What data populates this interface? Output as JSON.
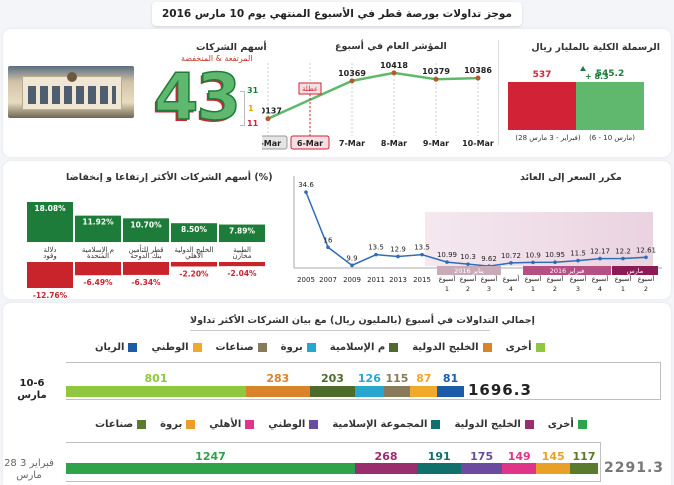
{
  "header": {
    "title": "موجز تداولات بورصة قطر في الأسبوع المنتهي يوم 10 مارس 2016"
  },
  "market_cap": {
    "title": "الرسملة الكلية بالمليار ريال",
    "current": {
      "value": 545.2,
      "label": "(6 - 10 مارس)",
      "color": "#5fb86d"
    },
    "previous": {
      "value": 537,
      "label": "(28 فبراير - 3 مارس)",
      "color": "#d12335"
    },
    "change": "+ 8.3"
  },
  "index": {
    "title": "المؤشر العام في أسبوع",
    "holiday": "عطلة",
    "days": [
      {
        "label": "3-Mar",
        "value": 10137,
        "highlight": "gray"
      },
      {
        "label": "6-Mar",
        "value": null,
        "highlight": "red"
      },
      {
        "label": "7-Mar",
        "value": 10369,
        "highlight": ""
      },
      {
        "label": "8-Mar",
        "value": 10418,
        "highlight": ""
      },
      {
        "label": "9-Mar",
        "value": 10379,
        "highlight": ""
      },
      {
        "label": "10-Mar",
        "value": 10386,
        "highlight": ""
      }
    ]
  },
  "stocks": {
    "title": "أسهم الشركات",
    "subtitle": "المرتفعة & المنخفضة",
    "total": "43",
    "up": "31",
    "flat": "1",
    "down": "11",
    "up_color": "#1d7c3a",
    "down_color": "#d12335"
  },
  "movers": {
    "title": "أسهم الشركات الأكثر إرتفاعا و إنخفاضا (%)",
    "gainers": [
      {
        "name": "الطبية",
        "value": "7.89%",
        "pct": 7.89
      },
      {
        "name": "الخليج الدولية",
        "value": "8.50%",
        "pct": 8.5
      },
      {
        "name": "قطر للتأمين",
        "value": "10.70%",
        "pct": 10.7
      },
      {
        "name": "م الإسلامية",
        "value": "11.92%",
        "pct": 11.92
      },
      {
        "name": "دلالة",
        "value": "18.08%",
        "pct": 18.08
      }
    ],
    "losers": [
      {
        "name": "مخازن",
        "value": "-2.04%",
        "pct": -2.04
      },
      {
        "name": "الأهلي",
        "value": "-2.20%",
        "pct": -2.2
      },
      {
        "name": "بنك الدوحة",
        "value": "-6.34%",
        "pct": -6.34
      },
      {
        "name": "المتحدة",
        "value": "-6.49%",
        "pct": -6.49
      },
      {
        "name": "وقود",
        "value": "-12.76%",
        "pct": -12.76
      }
    ]
  },
  "pe": {
    "title": "مكرر السعر إلى العائد",
    "points": [
      {
        "x": "2005",
        "y": 34.6
      },
      {
        "x": "2007",
        "y": 16
      },
      {
        "x": "2009",
        "y": 9.9
      },
      {
        "x": "2011",
        "y": 13.5
      },
      {
        "x": "2013",
        "y": 12.9
      },
      {
        "x": "2015",
        "y": 13.5
      },
      {
        "x": "أسبوع 1",
        "y": 10.99
      },
      {
        "x": "أسبوع 2",
        "y": 10.3
      },
      {
        "x": "أسبوع 3",
        "y": 9.62
      },
      {
        "x": "أسبوع 4",
        "y": 10.72
      },
      {
        "x": "أسبوع 1",
        "y": 10.9
      },
      {
        "x": "أسبوع 2",
        "y": 10.95
      },
      {
        "x": "أسبوع 3",
        "y": 11.5
      },
      {
        "x": "أسبوع 4",
        "y": 12.17
      },
      {
        "x": "أسبوع 1",
        "y": 12.2
      },
      {
        "x": "أسبوع 2",
        "y": 12.61
      }
    ],
    "months": [
      {
        "name": "يناير 2016",
        "color": "#c8aab8"
      },
      {
        "name": "فبراير 2016",
        "color": "#b64f86"
      },
      {
        "name": "مارس",
        "color": "#8c1a56"
      }
    ]
  },
  "volumes": {
    "title": "إجمالي التداولات في أسبوع (بالمليون ريال) مع بيان الشركات الأكثر تداولا",
    "week1": {
      "label": "10-6 مارس",
      "total": "1696.3",
      "segments": [
        {
          "name": "أخرى",
          "value": 801,
          "color": "#8fc73e"
        },
        {
          "name": "الخليج الدولية",
          "value": 283,
          "color": "#d9842b"
        },
        {
          "name": "م الإسلامية",
          "value": 203,
          "color": "#4d6b2a"
        },
        {
          "name": "بروة",
          "value": 126,
          "color": "#27a7cf"
        },
        {
          "name": "صناعات",
          "value": 115,
          "color": "#8a7a5c"
        },
        {
          "name": "الوطني",
          "value": 87,
          "color": "#f0a92a"
        },
        {
          "name": "الريان",
          "value": 81,
          "color": "#1a5ca8"
        }
      ]
    },
    "week2": {
      "label": "28 فبراير 3 مارس",
      "total": "2291.3",
      "segments": [
        {
          "name": "أخرى",
          "value": 1247,
          "color": "#2ea34a"
        },
        {
          "name": "الخليج الدولية",
          "value": 268,
          "color": "#9a2d6e"
        },
        {
          "name": "المجموعة الإسلامية",
          "value": 191,
          "color": "#11706c"
        },
        {
          "name": "الوطني",
          "value": 175,
          "color": "#6b4aa0"
        },
        {
          "name": "الأهلي",
          "value": 149,
          "color": "#e0338a"
        },
        {
          "name": "بروة",
          "value": 145,
          "color": "#e8a028"
        },
        {
          "name": "صناعات",
          "value": 117,
          "color": "#5a7a2e"
        }
      ]
    }
  }
}
